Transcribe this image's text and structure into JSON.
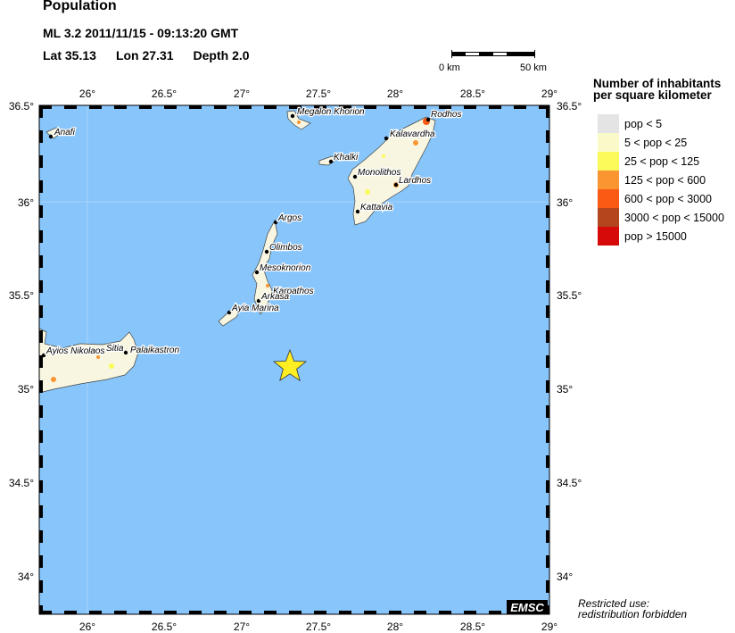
{
  "header": {
    "title": "Population",
    "event": "ML 3.2  2011/11/15 - 09:13:20 GMT",
    "lat": "Lat 35.13",
    "lon": "Lon  27.31",
    "depth": "Depth  2.0"
  },
  "scale_bar": {
    "start": "0 km",
    "end": "50 km"
  },
  "axes": {
    "lon_ticks": [
      "26°",
      "26.5°",
      "27°",
      "27.5°",
      "28°",
      "28.5°",
      "29°"
    ],
    "lat_ticks": [
      "36.5°",
      "36°",
      "35.5°",
      "35°",
      "34.5°",
      "34°"
    ]
  },
  "places": [
    "Anafi",
    "Megalon Khorion",
    "Rodhos",
    "Kalavardha",
    "Khalki",
    "Monolithos",
    "Lardhos",
    "Kattavia",
    "Argos",
    "Olimbos",
    "Mesoknorion",
    "Karpathos",
    "Arkasa",
    "Ayia Marina",
    "Ayios Nikolaos",
    "Sitia",
    "Palaikastron"
  ],
  "epicenter": {
    "lat": 35.13,
    "lon": 27.31,
    "marker": "star-icon",
    "color": "#ffee22"
  },
  "legend": {
    "title_line1": "Number of inhabitants",
    "title_line2": "per square kilometer",
    "items": [
      {
        "label": "pop < 5",
        "color": "#e4e4e4"
      },
      {
        "label": "5 < pop < 25",
        "color": "#fafac8"
      },
      {
        "label": "25 < pop < 125",
        "color": "#fafa5a"
      },
      {
        "label": "125 < pop < 600",
        "color": "#fa9632"
      },
      {
        "label": "600 < pop < 3000",
        "color": "#fa5a14"
      },
      {
        "label": "3000 < pop < 15000",
        "color": "#b4461e"
      },
      {
        "label": "pop > 15000",
        "color": "#d70a0a"
      }
    ]
  },
  "colors": {
    "sea": "#87c5fa",
    "land": "#f8f6e0"
  },
  "logo": "EMSC",
  "footer": {
    "line1": "Restricted use:",
    "line2": "redistribution forbidden"
  }
}
